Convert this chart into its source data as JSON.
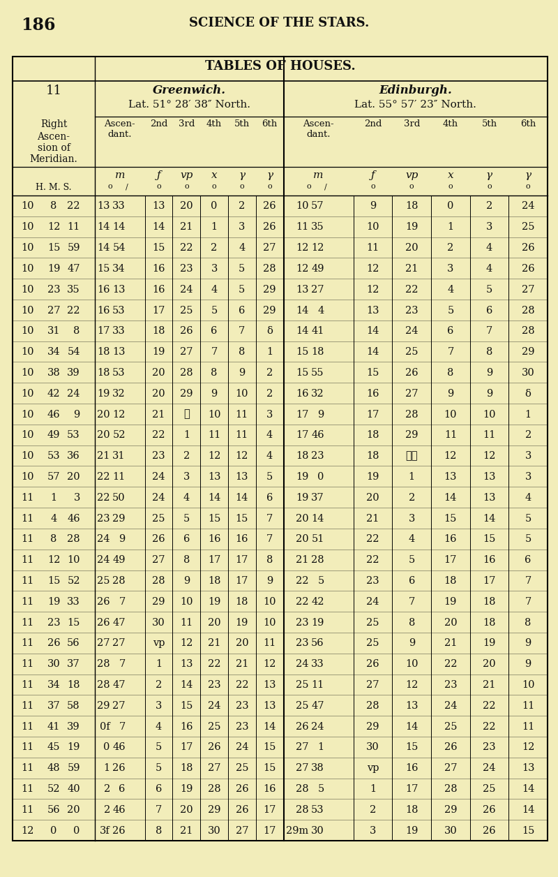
{
  "page_number": "186",
  "page_header": "SCIENCE OF THE STARS.",
  "table_title": "TABLES OF HOUSES.",
  "left_section_title": "Greenwich.",
  "left_section_lat": "Lat. 51° 28′ 38″ North.",
  "right_section_title": "Edinburgh.",
  "right_section_lat": "Lat. 55° 57′ 23″ North.",
  "col11_label": "11",
  "right_label_lines": [
    "Right",
    "Ascen-",
    "sion of",
    "Meridian."
  ],
  "ascendant_label": "Ascen-\ndant.",
  "col_labels": [
    "Ascen-\ndant.",
    "2nd",
    "3rd",
    "4th",
    "5th",
    "6th"
  ],
  "zodiac_symbols": [
    "m",
    "f",
    "vp",
    "x",
    "r",
    "r"
  ],
  "hms_label": "H. M. S.",
  "background_color": "#f2edba",
  "text_color": "#111111",
  "rows": [
    [
      "10",
      "8",
      "22",
      "13",
      "33",
      "13",
      "20",
      "0",
      "2",
      "26",
      "10",
      "57",
      "9",
      "18",
      "0",
      "2",
      "24"
    ],
    [
      "10",
      "12",
      "11",
      "14",
      "14",
      "14",
      "21",
      "1",
      "3",
      "26",
      "11",
      "35",
      "10",
      "19",
      "1",
      "3",
      "25"
    ],
    [
      "10",
      "15",
      "59",
      "14",
      "54",
      "15",
      "22",
      "2",
      "4",
      "27",
      "12",
      "12",
      "11",
      "20",
      "2",
      "4",
      "26"
    ],
    [
      "10",
      "19",
      "47",
      "15",
      "34",
      "16",
      "23",
      "3",
      "5",
      "28",
      "12",
      "49",
      "12",
      "21",
      "3",
      "4",
      "26"
    ],
    [
      "10",
      "23",
      "35",
      "16",
      "13",
      "16",
      "24",
      "4",
      "5",
      "29",
      "13",
      "27",
      "12",
      "22",
      "4",
      "5",
      "27"
    ],
    [
      "10",
      "27",
      "22",
      "16",
      "53",
      "17",
      "25",
      "5",
      "6",
      "29",
      "14",
      "4",
      "13",
      "23",
      "5",
      "6",
      "28"
    ],
    [
      "10",
      "31",
      "8",
      "17",
      "33",
      "18",
      "26",
      "6",
      "7",
      "δ",
      "14",
      "41",
      "14",
      "24",
      "6",
      "7",
      "28"
    ],
    [
      "10",
      "34",
      "54",
      "18",
      "13",
      "19",
      "27",
      "7",
      "8",
      "1",
      "15",
      "18",
      "14",
      "25",
      "7",
      "8",
      "29"
    ],
    [
      "10",
      "38",
      "39",
      "18",
      "53",
      "20",
      "28",
      "8",
      "9",
      "2",
      "15",
      "55",
      "15",
      "26",
      "8",
      "9",
      "30"
    ],
    [
      "10",
      "42",
      "24",
      "19",
      "32",
      "20",
      "29",
      "9",
      "10",
      "2",
      "16",
      "32",
      "16",
      "27",
      "9",
      "9",
      "δ"
    ],
    [
      "10",
      "46",
      "9",
      "20",
      "12",
      "21",
      "☷",
      "10",
      "11",
      "3",
      "17",
      "9",
      "17",
      "28",
      "10",
      "10",
      "1"
    ],
    [
      "10",
      "49",
      "53",
      "20",
      "52",
      "22",
      "1",
      "11",
      "11",
      "4",
      "17",
      "46",
      "18",
      "29",
      "11",
      "11",
      "2"
    ],
    [
      "10",
      "53",
      "36",
      "21",
      "31",
      "23",
      "2",
      "12",
      "12",
      "4",
      "18",
      "23",
      "18",
      "☷☷",
      "12",
      "12",
      "3"
    ],
    [
      "10",
      "57",
      "20",
      "22",
      "11",
      "24",
      "3",
      "13",
      "13",
      "5",
      "19",
      "0",
      "19",
      "1",
      "13",
      "13",
      "3"
    ],
    [
      "11",
      "1",
      "3",
      "22",
      "50",
      "24",
      "4",
      "14",
      "14",
      "6",
      "19",
      "37",
      "20",
      "2",
      "14",
      "13",
      "4"
    ],
    [
      "11",
      "4",
      "46",
      "23",
      "29",
      "25",
      "5",
      "15",
      "15",
      "7",
      "20",
      "14",
      "21",
      "3",
      "15",
      "14",
      "5"
    ],
    [
      "11",
      "8",
      "28",
      "24",
      "9",
      "26",
      "6",
      "16",
      "16",
      "7",
      "20",
      "51",
      "22",
      "4",
      "16",
      "15",
      "5"
    ],
    [
      "11",
      "12",
      "10",
      "24",
      "49",
      "27",
      "8",
      "17",
      "17",
      "8",
      "21",
      "28",
      "22",
      "5",
      "17",
      "16",
      "6"
    ],
    [
      "11",
      "15",
      "52",
      "25",
      "28",
      "28",
      "9",
      "18",
      "17",
      "9",
      "22",
      "5",
      "23",
      "6",
      "18",
      "17",
      "7"
    ],
    [
      "11",
      "19",
      "33",
      "26",
      "7",
      "29",
      "10",
      "19",
      "18",
      "10",
      "22",
      "42",
      "24",
      "7",
      "19",
      "18",
      "7"
    ],
    [
      "11",
      "23",
      "15",
      "26",
      "47",
      "30",
      "11",
      "20",
      "19",
      "10",
      "23",
      "19",
      "25",
      "8",
      "20",
      "18",
      "8"
    ],
    [
      "11",
      "26",
      "56",
      "27",
      "27",
      "vp",
      "12",
      "21",
      "20",
      "11",
      "23",
      "56",
      "25",
      "9",
      "21",
      "19",
      "9"
    ],
    [
      "11",
      "30",
      "37",
      "28",
      "7",
      "1",
      "13",
      "22",
      "21",
      "12",
      "24",
      "33",
      "26",
      "10",
      "22",
      "20",
      "9"
    ],
    [
      "11",
      "34",
      "18",
      "28",
      "47",
      "2",
      "14",
      "23",
      "22",
      "13",
      "25",
      "11",
      "27",
      "12",
      "23",
      "21",
      "10"
    ],
    [
      "11",
      "37",
      "58",
      "29",
      "27",
      "3",
      "15",
      "24",
      "23",
      "13",
      "25",
      "47",
      "28",
      "13",
      "24",
      "22",
      "11"
    ],
    [
      "11",
      "41",
      "39",
      "0f",
      "7",
      "4",
      "16",
      "25",
      "23",
      "14",
      "26",
      "24",
      "29",
      "14",
      "25",
      "22",
      "11"
    ],
    [
      "11",
      "45",
      "19",
      "0",
      "46",
      "5",
      "17",
      "26",
      "24",
      "15",
      "27",
      "1",
      "30",
      "15",
      "26",
      "23",
      "12"
    ],
    [
      "11",
      "48",
      "59",
      "1",
      "26",
      "5",
      "18",
      "27",
      "25",
      "15",
      "27",
      "38",
      "vp",
      "16",
      "27",
      "24",
      "13"
    ],
    [
      "11",
      "52",
      "40",
      "2",
      "6",
      "6",
      "19",
      "28",
      "26",
      "16",
      "28",
      "5",
      "1",
      "17",
      "28",
      "25",
      "14"
    ],
    [
      "11",
      "56",
      "20",
      "2",
      "46",
      "7",
      "20",
      "29",
      "26",
      "17",
      "28",
      "53",
      "2",
      "18",
      "29",
      "26",
      "14"
    ],
    [
      "12",
      "0",
      "0",
      "3f",
      "26",
      "8",
      "21",
      "30",
      "27",
      "17",
      "29m",
      "30",
      "3",
      "19",
      "30",
      "26",
      "15"
    ]
  ]
}
